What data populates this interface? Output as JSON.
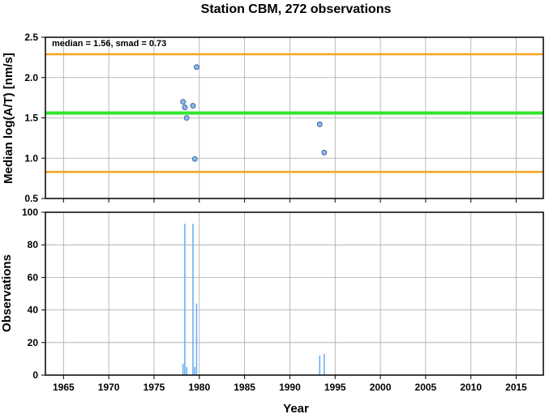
{
  "chart_data": [
    {
      "type": "scatter",
      "title": "Station CBM, 272 observations",
      "annotation": "median = 1.56, smad = 0.73",
      "xlabel": "",
      "ylabel": "Median log(A/T) [nm/s]",
      "xlim": [
        1963,
        2018
      ],
      "ylim": [
        0.5,
        2.5
      ],
      "yticks": [
        0.5,
        1.0,
        1.5,
        2.0,
        2.5
      ],
      "ytick_labels": [
        "0.5",
        "1.0",
        "1.5",
        "2.0",
        "2.5"
      ],
      "grid": true,
      "points": [
        {
          "x": 1978.2,
          "y": 1.7
        },
        {
          "x": 1978.4,
          "y": 1.63
        },
        {
          "x": 1978.6,
          "y": 1.5
        },
        {
          "x": 1979.3,
          "y": 1.65
        },
        {
          "x": 1979.5,
          "y": 0.99
        },
        {
          "x": 1979.7,
          "y": 2.13
        },
        {
          "x": 1993.3,
          "y": 1.42
        },
        {
          "x": 1993.8,
          "y": 1.07
        }
      ],
      "reference_lines": [
        {
          "name": "median",
          "y": 1.56,
          "color": "#2ee82e"
        },
        {
          "name": "upper",
          "y": 2.29,
          "color": "#f5a623"
        },
        {
          "name": "lower",
          "y": 0.83,
          "color": "#f5a623"
        }
      ],
      "point_color": "#8db8f0"
    },
    {
      "type": "bar",
      "title": "",
      "xlabel": "Year",
      "ylabel": "Observations",
      "xlim": [
        1963,
        2018
      ],
      "ylim": [
        0,
        100
      ],
      "xticks": [
        1965,
        1970,
        1975,
        1980,
        1985,
        1990,
        1995,
        2000,
        2005,
        2010,
        2015
      ],
      "xtick_labels": [
        "1965",
        "1970",
        "1975",
        "1980",
        "1985",
        "1990",
        "1995",
        "2000",
        "2005",
        "2010",
        "2015"
      ],
      "yticks": [
        0,
        20,
        40,
        60,
        80,
        100
      ],
      "ytick_labels": [
        "0",
        "20",
        "40",
        "60",
        "80",
        "100"
      ],
      "grid": true,
      "bars": [
        {
          "x": 1978.2,
          "value": 7
        },
        {
          "x": 1978.4,
          "value": 93
        },
        {
          "x": 1978.6,
          "value": 5
        },
        {
          "x": 1979.3,
          "value": 93
        },
        {
          "x": 1979.5,
          "value": 5
        },
        {
          "x": 1979.7,
          "value": 44
        },
        {
          "x": 1993.3,
          "value": 12
        },
        {
          "x": 1993.8,
          "value": 13
        }
      ],
      "bar_color": "#6ab0f5"
    }
  ]
}
